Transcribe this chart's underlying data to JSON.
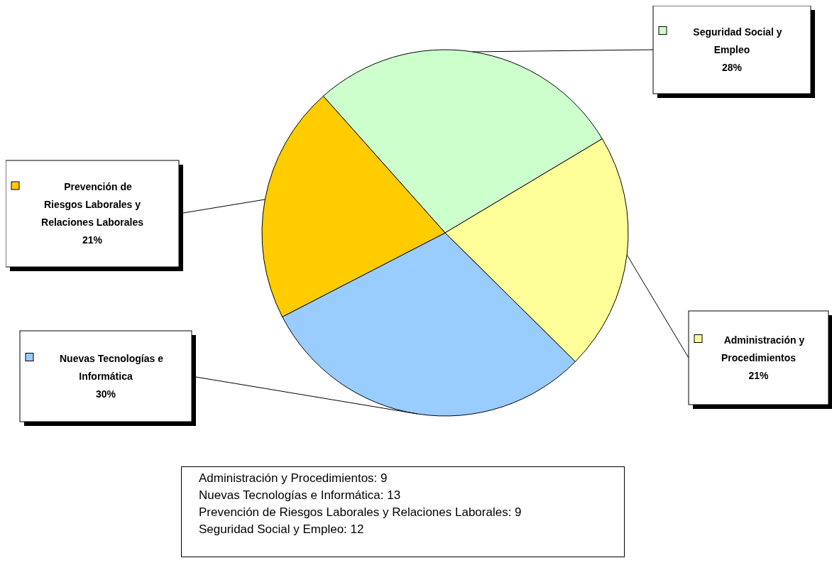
{
  "chart_data": {
    "type": "pie",
    "categories": [
      "Seguridad Social y Empleo",
      "Administración y Procedimientos",
      "Nuevas Tecnologías e Informática",
      "Prevención de Riesgos Laborales y Relaciones Laborales"
    ],
    "values": [
      28,
      21,
      30,
      21
    ],
    "colors": [
      "#ccffcc",
      "#ffff99",
      "#99ccff",
      "#ffcc00"
    ],
    "value_labels": [
      "28%",
      "21%",
      "30%",
      "21%"
    ],
    "annotations": [
      "Administración y Procedimientos:  9",
      "Nuevas Tecnologías e Informática:  13",
      "Prevención de Riesgos Laborales y Relaciones Laborales:  9",
      "Seguridad Social y Empleo:  12"
    ]
  }
}
